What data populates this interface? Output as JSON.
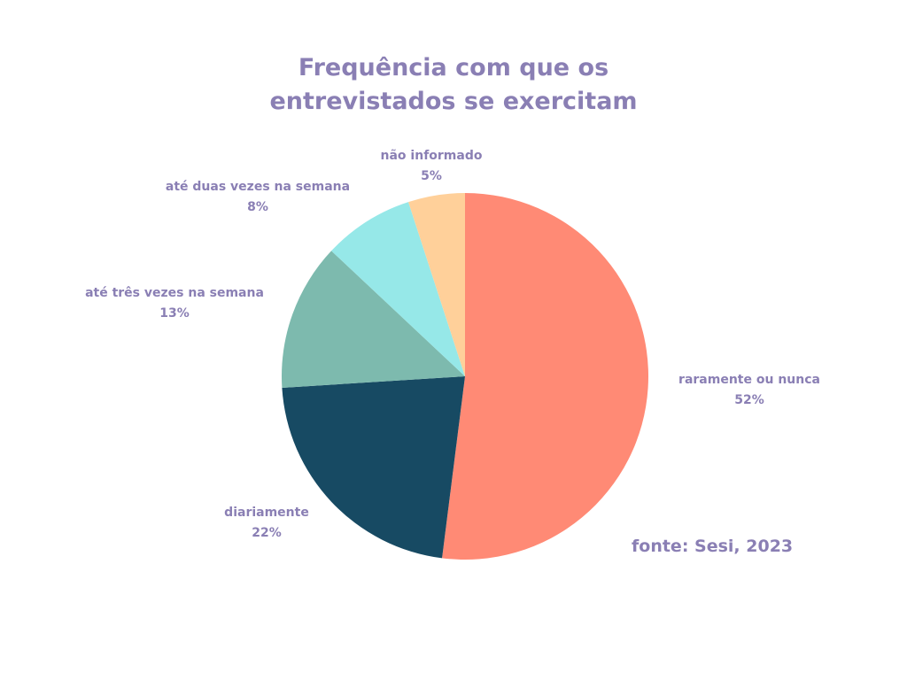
{
  "chart_data": {
    "type": "pie",
    "title_lines": [
      "Frequência com que os",
      "entrevistados se exercitam"
    ],
    "categories": [
      "raramente ou nunca",
      "diariamente",
      "até três vezes na semana",
      "até duas vezes na semana",
      "não informado"
    ],
    "values": [
      52,
      22,
      13,
      8,
      5
    ],
    "value_labels": [
      "52%",
      "22%",
      "13%",
      "8%",
      "5%"
    ],
    "colors": [
      "#ff8a75",
      "#174a63",
      "#7dbaae",
      "#96e8e8",
      "#ffd09a"
    ],
    "start_angle": "top",
    "direction": "clockwise",
    "legend": "none",
    "source": "fonte: Sesi, 2023"
  }
}
